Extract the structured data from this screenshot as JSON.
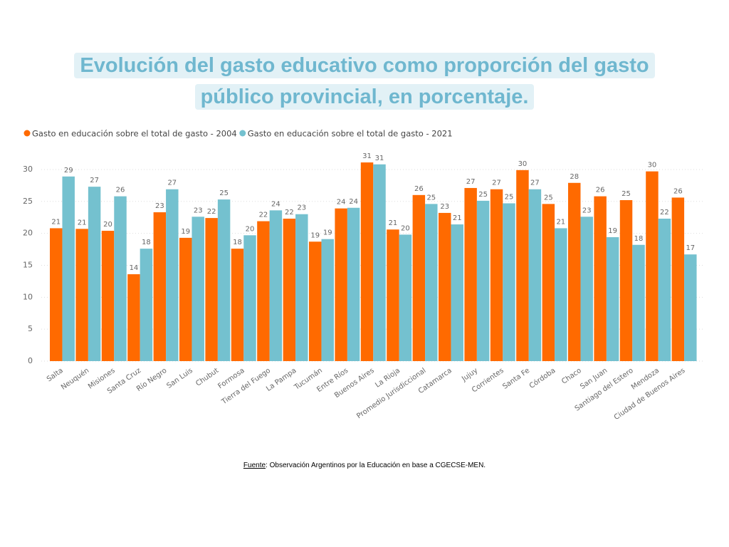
{
  "chart_data": {
    "type": "bar",
    "title": "Evolución del gasto educativo como proporción del gasto público provincial, en porcentaje.",
    "categories": [
      "Salta",
      "Neuquén",
      "Misiones",
      "Santa Cruz",
      "Río Negro",
      "San Luis",
      "Chubut",
      "Formosa",
      "Tierra del Fuego",
      "La Pampa",
      "Tucumán",
      "Entre Ríos",
      "Buenos Aires",
      "La Rioja",
      "Promedio Jurisdiccional",
      "Catamarca",
      "Jujuy",
      "Corrientes",
      "Santa Fe",
      "Córdoba",
      "Chaco",
      "San Juan",
      "Santiago del Estero",
      "Mendoza",
      "Ciudad de Buenos Aires"
    ],
    "series": [
      {
        "name": "Gasto en educación sobre el total de gasto - 2004",
        "color": "#ff6a00",
        "values": [
          20.8,
          20.7,
          20.4,
          13.6,
          23.3,
          19.3,
          22.4,
          17.6,
          21.9,
          22.3,
          18.7,
          23.9,
          31.1,
          20.6,
          26.0,
          23.2,
          27.1,
          26.9,
          29.9,
          24.6,
          27.9,
          25.8,
          25.2,
          29.7,
          25.6
        ],
        "value_labels": [
          "21",
          "21",
          "20",
          "14",
          "23",
          "19",
          "22",
          "18",
          "22",
          "22",
          "19",
          "24",
          "31",
          "21",
          "26",
          "23",
          "27",
          "27",
          "30",
          "25",
          "28",
          "26",
          "25",
          "30",
          "26"
        ]
      },
      {
        "name": "Gasto en educación sobre el total de gasto - 2021",
        "color": "#74c1cf",
        "values": [
          28.9,
          27.3,
          25.8,
          17.6,
          26.9,
          22.6,
          25.3,
          19.7,
          23.6,
          23.0,
          19.1,
          24.0,
          30.8,
          19.8,
          24.6,
          21.4,
          25.1,
          24.7,
          26.9,
          20.8,
          22.6,
          19.4,
          18.2,
          22.3,
          16.7
        ],
        "value_labels": [
          "29",
          "27",
          "26",
          "18",
          "27",
          "23",
          "25",
          "20",
          "24",
          "23",
          "19",
          "24",
          "31",
          "20",
          "25",
          "21",
          "25",
          "25",
          "27",
          "21",
          "23",
          "19",
          "18",
          "22",
          "17"
        ]
      }
    ],
    "ylim": [
      0,
      32
    ],
    "yticks": [
      0,
      5,
      10,
      15,
      20,
      25,
      30
    ],
    "grid": true,
    "source_label": "Fuente",
    "source_text": ": Observación Argentinos por la Educación en base a CGECSE-MEN."
  }
}
